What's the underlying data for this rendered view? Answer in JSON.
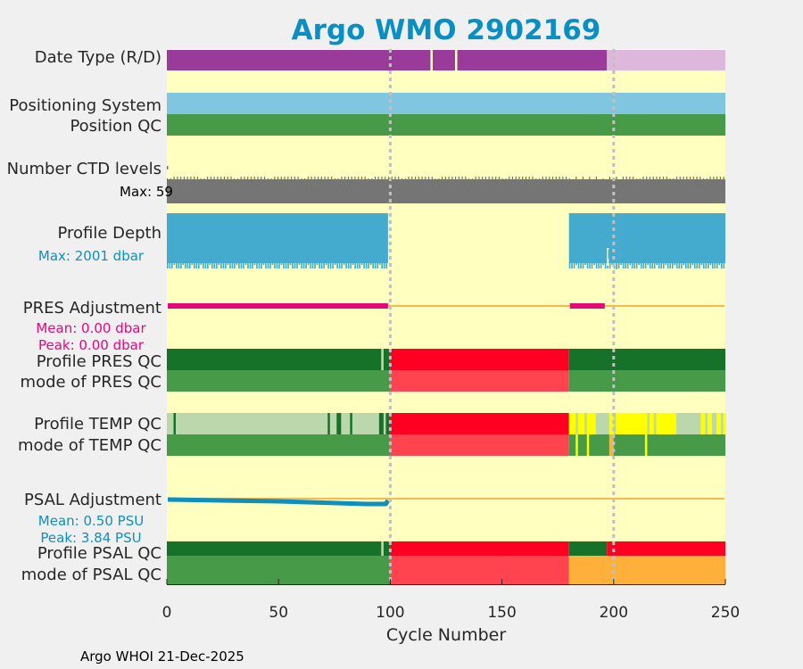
{
  "chart_data": {
    "type": "timeline-qc",
    "title": "Argo WMO 2902169",
    "xlabel": "Cycle Number",
    "xlim": [
      0,
      250
    ],
    "xticks": [
      0,
      50,
      100,
      150,
      200,
      250
    ],
    "vlines": [
      100,
      200
    ],
    "footer": "Argo WHOI 21-Dec-2025",
    "colors": {
      "background": "#ffffc0",
      "title": "#0a8fc2",
      "real_time": "#9a3b9c",
      "delayed": "#ddb7dc",
      "positioning": "#80c6e0",
      "good": "#479a47",
      "good_dark": "#167228",
      "good_light": "#bad8ac",
      "bad": "#ff0022",
      "bad_mode": "#ff4450",
      "probably_bad": "#ffff00",
      "changed": "#ffb03b",
      "missing": "#bbbbbb",
      "ctd_levels": "#757575",
      "profile_depth": "#44aace",
      "pres_adjustment": "#e4087c",
      "psal_adjustment": "#0f8fbd",
      "adjustment_line": "#f5b94f"
    },
    "rows": [
      {
        "key": "data_type",
        "label": "Date Type (R/D)",
        "segments": [
          {
            "from": 0,
            "to": 118,
            "cat": "real_time"
          },
          {
            "from": 119,
            "to": 129,
            "cat": "real_time"
          },
          {
            "from": 130,
            "to": 197,
            "cat": "real_time"
          },
          {
            "from": 197,
            "to": 250,
            "cat": "delayed"
          }
        ]
      },
      {
        "key": "positioning_system",
        "label": "Positioning System",
        "segments": [
          {
            "from": 0,
            "to": 250,
            "cat": "positioning"
          }
        ]
      },
      {
        "key": "position_qc",
        "label": "Position QC",
        "segments": [
          {
            "from": 0,
            "to": 250,
            "cat": "good"
          }
        ]
      },
      {
        "key": "ctd_levels",
        "label": "Number CTD levels",
        "note": "Max: 59",
        "segments": [
          {
            "from": 0,
            "to": 250,
            "cat": "ctd_levels"
          }
        ]
      },
      {
        "key": "profile_depth",
        "label": "Profile Depth",
        "note": "Max: 2001 dbar",
        "segments": [
          {
            "from": 0,
            "to": 99,
            "cat": "profile_depth"
          },
          {
            "from": 180,
            "to": 250,
            "cat": "profile_depth"
          }
        ]
      },
      {
        "key": "pres_adjustment",
        "label": "PRES Adjustment",
        "notes": [
          "Mean: 0.00 dbar",
          "Peak: 0.00 dbar"
        ],
        "segments": [
          {
            "from": 0,
            "to": 99,
            "value": 0.0
          },
          {
            "from": 180,
            "to": 196,
            "value": 0.0
          }
        ]
      },
      {
        "key": "profile_pres_qc",
        "label": "Profile PRES QC",
        "segments": [
          {
            "from": 0,
            "to": 96,
            "cat": "good_dark"
          },
          {
            "from": 96,
            "to": 97,
            "cat": "good_light"
          },
          {
            "from": 97,
            "to": 100,
            "cat": "good_dark"
          },
          {
            "from": 100,
            "to": 180,
            "cat": "bad"
          },
          {
            "from": 180,
            "to": 250,
            "cat": "good_dark"
          }
        ]
      },
      {
        "key": "mode_pres_qc",
        "label": "mode of PRES QC",
        "segments": [
          {
            "from": 0,
            "to": 100,
            "cat": "good"
          },
          {
            "from": 100,
            "to": 180,
            "cat": "bad_mode"
          },
          {
            "from": 180,
            "to": 250,
            "cat": "good"
          }
        ]
      },
      {
        "key": "profile_temp_qc",
        "label": "Profile TEMP QC",
        "segments": [
          {
            "from": 0,
            "to": 100,
            "cat": "good_light"
          },
          {
            "from": 3,
            "to": 4,
            "cat": "good_dark"
          },
          {
            "from": 72,
            "to": 73,
            "cat": "good_dark"
          },
          {
            "from": 76,
            "to": 78,
            "cat": "good_dark"
          },
          {
            "from": 82,
            "to": 83,
            "cat": "good_dark"
          },
          {
            "from": 95,
            "to": 97,
            "cat": "good_dark"
          },
          {
            "from": 98,
            "to": 100,
            "cat": "good_dark"
          },
          {
            "from": 100,
            "to": 180,
            "cat": "bad"
          },
          {
            "from": 180,
            "to": 250,
            "cat": "probably_bad"
          },
          {
            "from": 183,
            "to": 184,
            "cat": "good_light"
          },
          {
            "from": 187,
            "to": 188,
            "cat": "good_light"
          },
          {
            "from": 192,
            "to": 198,
            "cat": "good_light"
          },
          {
            "from": 200,
            "to": 201,
            "cat": "good_light"
          },
          {
            "from": 215,
            "to": 216,
            "cat": "good_light"
          },
          {
            "from": 218,
            "to": 219,
            "cat": "good_light"
          },
          {
            "from": 228,
            "to": 239,
            "cat": "good_light"
          },
          {
            "from": 241,
            "to": 242,
            "cat": "good_light"
          },
          {
            "from": 244,
            "to": 246,
            "cat": "good_light"
          },
          {
            "from": 248,
            "to": 249,
            "cat": "good_light"
          }
        ]
      },
      {
        "key": "mode_temp_qc",
        "label": "mode of TEMP QC",
        "segments": [
          {
            "from": 0,
            "to": 100,
            "cat": "good"
          },
          {
            "from": 100,
            "to": 180,
            "cat": "bad_mode"
          },
          {
            "from": 180,
            "to": 250,
            "cat": "good"
          },
          {
            "from": 183,
            "to": 184,
            "cat": "probably_bad"
          },
          {
            "from": 188,
            "to": 189,
            "cat": "probably_bad"
          },
          {
            "from": 198,
            "to": 200,
            "cat": "changed"
          },
          {
            "from": 214,
            "to": 215,
            "cat": "probably_bad"
          }
        ]
      },
      {
        "key": "psal_adjustment",
        "label": "PSAL Adjustment",
        "notes": [
          "Mean: 0.50 PSU",
          "Peak: 3.84 PSU"
        ],
        "line_segment": {
          "from": 0,
          "to": 99
        }
      },
      {
        "key": "profile_psal_qc",
        "label": "Profile PSAL QC",
        "segments": [
          {
            "from": 0,
            "to": 96,
            "cat": "good_dark"
          },
          {
            "from": 96,
            "to": 97,
            "cat": "good_light"
          },
          {
            "from": 97,
            "to": 100,
            "cat": "good_dark"
          },
          {
            "from": 100,
            "to": 180,
            "cat": "bad"
          },
          {
            "from": 180,
            "to": 197,
            "cat": "good_dark"
          },
          {
            "from": 197,
            "to": 250,
            "cat": "bad"
          }
        ]
      },
      {
        "key": "mode_psal_qc",
        "label": "mode of PSAL QC",
        "segments": [
          {
            "from": 0,
            "to": 100,
            "cat": "good"
          },
          {
            "from": 100,
            "to": 180,
            "cat": "bad_mode"
          },
          {
            "from": 180,
            "to": 250,
            "cat": "changed"
          }
        ]
      }
    ]
  }
}
